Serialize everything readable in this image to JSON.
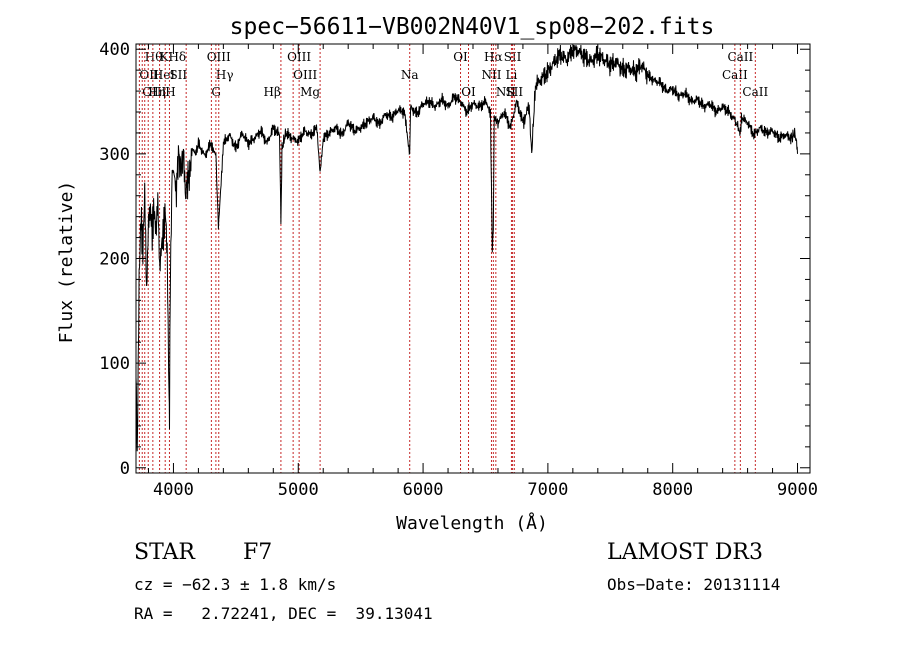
{
  "chart_data": {
    "type": "line",
    "title": "spec−56611−VB002N40V1_sp08−202.fits",
    "xlabel": "Wavelength (Å)",
    "ylabel": "Flux (relative)",
    "xlim": [
      3700,
      9100
    ],
    "ylim": [
      -5,
      405
    ],
    "xticks": [
      4000,
      5000,
      6000,
      7000,
      8000,
      9000
    ],
    "yticks": [
      0,
      100,
      200,
      300,
      400
    ],
    "spectrum": {
      "x": [
        3700,
        3710,
        3725,
        3740,
        3755,
        3770,
        3785,
        3800,
        3815,
        3830,
        3845,
        3860,
        3875,
        3890,
        3905,
        3920,
        3935,
        3950,
        3965,
        3968,
        3975,
        3990,
        4005,
        4020,
        4040,
        4060,
        4080,
        4101,
        4110,
        4130,
        4150,
        4180,
        4200,
        4250,
        4300,
        4340,
        4360,
        4400,
        4450,
        4500,
        4550,
        4600,
        4650,
        4700,
        4750,
        4800,
        4850,
        4861,
        4870,
        4900,
        4950,
        5000,
        5050,
        5100,
        5150,
        5175,
        5200,
        5250,
        5300,
        5350,
        5400,
        5450,
        5500,
        5550,
        5600,
        5650,
        5700,
        5750,
        5800,
        5850,
        5893,
        5900,
        5950,
        6000,
        6050,
        6100,
        6150,
        6200,
        6250,
        6300,
        6350,
        6400,
        6450,
        6500,
        6540,
        6555,
        6563,
        6570,
        6600,
        6650,
        6700,
        6750,
        6800,
        6850,
        6870,
        6900,
        6950,
        7000,
        7050,
        7100,
        7150,
        7200,
        7250,
        7300,
        7350,
        7400,
        7450,
        7500,
        7550,
        7600,
        7650,
        7700,
        7750,
        7800,
        7850,
        7900,
        7950,
        8000,
        8050,
        8100,
        8150,
        8200,
        8250,
        8300,
        8350,
        8400,
        8450,
        8500,
        8542,
        8550,
        8600,
        8650,
        8700,
        8750,
        8800,
        8850,
        8900,
        8950,
        8980,
        8990,
        8995,
        9000
      ],
      "y": [
        100,
        5,
        180,
        245,
        210,
        260,
        165,
        240,
        250,
        220,
        245,
        230,
        260,
        185,
        210,
        230,
        250,
        200,
        60,
        55,
        180,
        290,
        280,
        260,
        300,
        285,
        300,
        255,
        275,
        280,
        305,
        300,
        310,
        298,
        310,
        300,
        230,
        310,
        318,
        305,
        320,
        310,
        315,
        322,
        310,
        325,
        318,
        235,
        305,
        320,
        315,
        312,
        322,
        318,
        325,
        280,
        315,
        320,
        325,
        318,
        330,
        322,
        325,
        330,
        335,
        328,
        338,
        335,
        342,
        340,
        300,
        345,
        338,
        348,
        350,
        345,
        352,
        345,
        355,
        350,
        340,
        348,
        345,
        350,
        340,
        205,
        230,
        335,
        330,
        340,
        325,
        350,
        330,
        345,
        300,
        365,
        372,
        378,
        388,
        395,
        390,
        400,
        398,
        392,
        388,
        395,
        390,
        385,
        388,
        380,
        382,
        378,
        385,
        375,
        370,
        368,
        360,
        362,
        355,
        358,
        350,
        352,
        345,
        348,
        340,
        345,
        340,
        332,
        320,
        335,
        330,
        318,
        325,
        320,
        322,
        315,
        318,
        315,
        320,
        310,
        305,
        300
      ]
    },
    "lines": [
      {
        "wl": 3727,
        "label": "OII",
        "tier": 1,
        "align": "start"
      },
      {
        "wl": 3750,
        "label": "OIII",
        "tier": 2,
        "align": "start"
      },
      {
        "wl": 3770,
        "label": "Hθ",
        "tier": 0,
        "align": "start"
      },
      {
        "wl": 3798,
        "label": "Hη",
        "tier": 2,
        "align": "start"
      },
      {
        "wl": 3835,
        "label": "HeI",
        "tier": 1,
        "align": "start"
      },
      {
        "wl": 3889,
        "label": "K",
        "tier": 0,
        "align": "start"
      },
      {
        "wl": 3934,
        "label": "H",
        "tier": 2,
        "align": "start"
      },
      {
        "wl": 3968,
        "label": "SII",
        "tier": 1,
        "align": "start"
      },
      {
        "wl": 4102,
        "label": "Hδ",
        "tier": 0,
        "align": "end"
      },
      {
        "wl": 4304,
        "label": "G",
        "tier": 2,
        "align": "start"
      },
      {
        "wl": 4340,
        "label": "Hγ",
        "tier": 1,
        "align": "start"
      },
      {
        "wl": 4363,
        "label": "OIII",
        "tier": 0,
        "align": "middle"
      },
      {
        "wl": 4861,
        "label": "Hβ",
        "tier": 2,
        "align": "end"
      },
      {
        "wl": 4959,
        "label": "OIII",
        "tier": 1,
        "align": "start"
      },
      {
        "wl": 5007,
        "label": "OIII",
        "tier": 0,
        "align": "middle"
      },
      {
        "wl": 5175,
        "label": "Mg",
        "tier": 2,
        "align": "end"
      },
      {
        "wl": 5893,
        "label": "Na",
        "tier": 1,
        "align": "middle"
      },
      {
        "wl": 6300,
        "label": "OI",
        "tier": 0,
        "align": "middle"
      },
      {
        "wl": 6364,
        "label": "OI",
        "tier": 2,
        "align": "middle"
      },
      {
        "wl": 6548,
        "label": "NII",
        "tier": 1,
        "align": "middle"
      },
      {
        "wl": 6563,
        "label": "Hα",
        "tier": 0,
        "align": "middle"
      },
      {
        "wl": 6583,
        "label": "NII",
        "tier": 2,
        "align": "start"
      },
      {
        "wl": 6708,
        "label": "Li",
        "tier": 1,
        "align": "middle"
      },
      {
        "wl": 6717,
        "label": "SII",
        "tier": 0,
        "align": "middle"
      },
      {
        "wl": 6731,
        "label": "SII",
        "tier": 2,
        "align": "middle"
      },
      {
        "wl": 8498,
        "label": "CaII",
        "tier": 1,
        "align": "middle"
      },
      {
        "wl": 8542,
        "label": "CaII",
        "tier": 0,
        "align": "middle"
      },
      {
        "wl": 8662,
        "label": "CaII",
        "tier": 2,
        "align": "middle"
      }
    ]
  },
  "info": {
    "object_class": "STAR",
    "subclass": "F7",
    "survey": "LAMOST DR3",
    "redshift": "cz = −62.3 ± 1.8 km/s",
    "obs_date": "Obs−Date: 20131114",
    "coords": "RA =   2.72241, DEC =  39.13041"
  }
}
